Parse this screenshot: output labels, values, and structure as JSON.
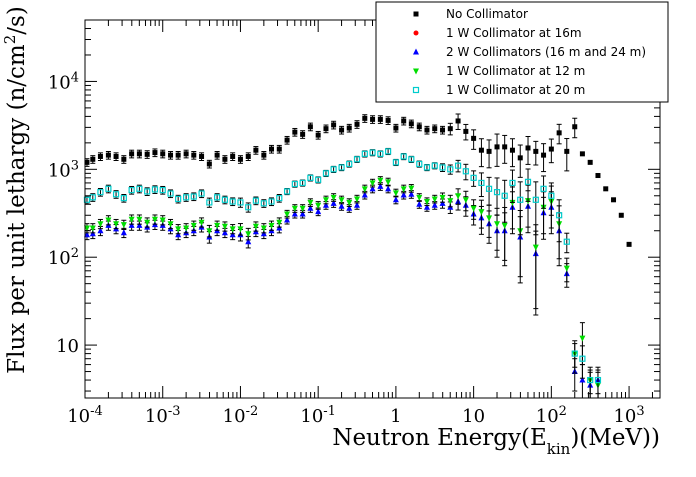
{
  "chart_data": {
    "type": "scatter",
    "xlabel_main": "Neutron Energy(E",
    "xlabel_sub": "kin",
    "xlabel_tail": ")(MeV))",
    "ylabel_main": "Flux per unit lethargy (n/cm",
    "ylabel_sup": "2",
    "ylabel_tail": "/s)",
    "x_scale": "log",
    "y_scale": "log",
    "xlim": [
      0.0001,
      2500
    ],
    "ylim": [
      2.5,
      50000
    ],
    "x_ticks": [
      {
        "value": 0.0001,
        "base": "10",
        "exp": "-4"
      },
      {
        "value": 0.001,
        "base": "10",
        "exp": "-3"
      },
      {
        "value": 0.01,
        "base": "10",
        "exp": "-2"
      },
      {
        "value": 0.1,
        "base": "10",
        "exp": "-1"
      },
      {
        "value": 1,
        "base": "1",
        "exp": ""
      },
      {
        "value": 10,
        "base": "10",
        "exp": ""
      },
      {
        "value": 100,
        "base": "10",
        "exp": "2"
      },
      {
        "value": 1000,
        "base": "10",
        "exp": "3"
      }
    ],
    "y_ticks": [
      {
        "value": 10,
        "base": "10",
        "exp": ""
      },
      {
        "value": 100,
        "base": "10",
        "exp": "2"
      },
      {
        "value": 1000,
        "base": "10",
        "exp": "3"
      },
      {
        "value": 10000,
        "base": "10",
        "exp": "4"
      }
    ],
    "grid": false,
    "legend_position": "top-right",
    "x": [
      0.000106,
      0.000126,
      0.000158,
      0.0002,
      0.000251,
      0.000316,
      0.000398,
      0.000501,
      0.000631,
      0.000794,
      0.001,
      0.00126,
      0.00158,
      0.002,
      0.00251,
      0.00316,
      0.00398,
      0.00501,
      0.00631,
      0.00794,
      0.01,
      0.0126,
      0.0158,
      0.02,
      0.0251,
      0.0316,
      0.0398,
      0.0501,
      0.0631,
      0.0794,
      0.1,
      0.126,
      0.158,
      0.2,
      0.251,
      0.316,
      0.398,
      0.501,
      0.631,
      0.794,
      1.0,
      1.26,
      1.58,
      2.0,
      2.51,
      3.16,
      3.98,
      5.01,
      6.31,
      7.94,
      10.0,
      12.6,
      15.8,
      20.0,
      25.1,
      31.6,
      39.8,
      50.1,
      63.1,
      79.4,
      100,
      126,
      158,
      200,
      251,
      316,
      398,
      501,
      631,
      794,
      1000
    ],
    "series": [
      {
        "name": "No Collimator",
        "color": "#000000",
        "marker": "square-filled",
        "values": [
          1200,
          1300,
          1400,
          1450,
          1400,
          1300,
          1500,
          1500,
          1480,
          1550,
          1500,
          1450,
          1450,
          1500,
          1450,
          1400,
          1150,
          1450,
          1300,
          1400,
          1300,
          1400,
          1650,
          1450,
          1700,
          1700,
          2150,
          2650,
          2500,
          3050,
          2450,
          2900,
          3200,
          2800,
          2950,
          3250,
          3800,
          3700,
          3700,
          3600,
          2950,
          3550,
          3300,
          3050,
          2800,
          2900,
          2800,
          2900,
          3550,
          2700,
          2250,
          1650,
          1600,
          1800,
          1800,
          1650,
          1350,
          1750,
          1600,
          1450,
          1700,
          2600,
          1600,
          3050,
          1500,
          1200,
          850,
          600,
          450,
          300,
          140
        ],
        "errors": [
          0.1,
          0.1,
          0.1,
          0.1,
          0.1,
          0.1,
          0.1,
          0.1,
          0.1,
          0.1,
          0.1,
          0.1,
          0.1,
          0.1,
          0.1,
          0.1,
          0.1,
          0.1,
          0.1,
          0.1,
          0.1,
          0.1,
          0.1,
          0.1,
          0.1,
          0.1,
          0.1,
          0.1,
          0.1,
          0.1,
          0.1,
          0.1,
          0.1,
          0.1,
          0.1,
          0.1,
          0.1,
          0.1,
          0.1,
          0.1,
          0.1,
          0.1,
          0.1,
          0.1,
          0.1,
          0.1,
          0.1,
          0.15,
          0.2,
          0.2,
          0.25,
          0.35,
          0.35,
          0.4,
          0.35,
          0.35,
          0.4,
          0.35,
          0.3,
          0.35,
          0.3,
          0.25,
          0.4,
          0.25,
          0.0,
          0.0,
          0.0,
          0.0,
          0.0,
          0.0,
          0.0
        ]
      },
      {
        "name": "1 W Collimator at 16m",
        "color": "#ff0000",
        "marker": "circle-filled",
        "values": [
          null,
          null,
          null,
          null,
          null,
          null,
          null,
          null,
          null,
          null,
          null,
          null,
          null,
          null,
          null,
          null,
          null,
          null,
          null,
          null,
          null,
          null,
          null,
          null,
          null,
          null,
          null,
          null,
          null,
          null,
          null,
          null,
          null,
          null,
          null,
          null,
          null,
          null,
          null,
          null,
          null,
          null,
          null,
          null,
          null,
          null,
          null,
          null,
          null,
          null,
          null,
          null,
          null,
          null,
          null,
          null,
          null,
          null,
          null,
          null,
          null,
          null,
          null,
          null,
          null,
          null,
          null,
          null,
          null,
          null,
          null
        ],
        "errors": []
      },
      {
        "name": "2 W Collimators (16 m and 24 m)",
        "color": "#0000ff",
        "marker": "triangle-up",
        "values": [
          180,
          185,
          200,
          230,
          210,
          190,
          230,
          230,
          220,
          235,
          230,
          210,
          180,
          190,
          200,
          220,
          170,
          200,
          190,
          180,
          180,
          150,
          195,
          185,
          200,
          215,
          265,
          310,
          310,
          360,
          330,
          390,
          410,
          380,
          360,
          390,
          510,
          600,
          640,
          600,
          450,
          510,
          520,
          400,
          370,
          390,
          410,
          370,
          430,
          390,
          310,
          280,
          240,
          200,
          200,
          370,
          170,
          380,
          110,
          320,
          370,
          200,
          65,
          5,
          4,
          3.5,
          4,
          null,
          null,
          null,
          null
        ],
        "errors": [
          0.12,
          0.12,
          0.12,
          0.12,
          0.12,
          0.12,
          0.12,
          0.12,
          0.12,
          0.12,
          0.12,
          0.12,
          0.12,
          0.12,
          0.12,
          0.12,
          0.15,
          0.12,
          0.12,
          0.12,
          0.15,
          0.15,
          0.12,
          0.12,
          0.12,
          0.12,
          0.1,
          0.1,
          0.1,
          0.1,
          0.1,
          0.1,
          0.1,
          0.1,
          0.1,
          0.1,
          0.1,
          0.1,
          0.1,
          0.1,
          0.1,
          0.1,
          0.1,
          0.1,
          0.1,
          0.1,
          0.12,
          0.15,
          0.2,
          0.25,
          0.25,
          0.35,
          0.4,
          0.5,
          0.6,
          0.5,
          0.7,
          0.5,
          0.8,
          0.5,
          0.5,
          0.6,
          0.3,
          0.4,
          0.5,
          0.4,
          0.4,
          0,
          0,
          0,
          0
        ]
      },
      {
        "name": "1 W Collimator at 12 m",
        "color": "#00dd00",
        "marker": "triangle-down",
        "values": [
          215,
          215,
          240,
          265,
          240,
          235,
          270,
          270,
          250,
          270,
          265,
          240,
          210,
          215,
          230,
          250,
          200,
          230,
          225,
          210,
          210,
          185,
          225,
          215,
          230,
          250,
          310,
          360,
          360,
          420,
          390,
          450,
          480,
          450,
          420,
          460,
          600,
          700,
          750,
          720,
          540,
          600,
          610,
          480,
          430,
          460,
          480,
          440,
          500,
          450,
          360,
          330,
          280,
          240,
          230,
          420,
          200,
          440,
          130,
          370,
          430,
          240,
          75,
          8,
          12,
          4,
          3.5,
          null,
          null,
          null,
          null
        ],
        "errors": [
          0.12,
          0.12,
          0.12,
          0.12,
          0.12,
          0.12,
          0.12,
          0.12,
          0.12,
          0.12,
          0.12,
          0.12,
          0.12,
          0.12,
          0.12,
          0.12,
          0.15,
          0.12,
          0.12,
          0.12,
          0.15,
          0.15,
          0.12,
          0.12,
          0.12,
          0.12,
          0.1,
          0.1,
          0.1,
          0.1,
          0.1,
          0.1,
          0.1,
          0.1,
          0.1,
          0.1,
          0.1,
          0.1,
          0.1,
          0.1,
          0.1,
          0.1,
          0.1,
          0.1,
          0.1,
          0.1,
          0.12,
          0.15,
          0.2,
          0.25,
          0.25,
          0.35,
          0.4,
          0.5,
          0.6,
          0.5,
          0.7,
          0.5,
          0.8,
          0.5,
          0.5,
          0.6,
          0.3,
          0.4,
          0.5,
          0.4,
          0.4,
          0,
          0,
          0,
          0
        ]
      },
      {
        "name": "1 W Collimator at 20 m",
        "color": "#00cccc",
        "marker": "square-open",
        "values": [
          450,
          480,
          550,
          600,
          520,
          470,
          580,
          600,
          560,
          590,
          580,
          530,
          460,
          480,
          490,
          530,
          420,
          480,
          450,
          430,
          420,
          370,
          440,
          410,
          430,
          470,
          560,
          680,
          700,
          800,
          760,
          900,
          1000,
          1050,
          1150,
          1300,
          1500,
          1550,
          1500,
          1600,
          1200,
          1400,
          1300,
          1150,
          1050,
          1100,
          1050,
          1000,
          1100,
          950,
          800,
          700,
          600,
          550,
          500,
          700,
          450,
          720,
          450,
          600,
          500,
          300,
          150,
          8,
          7,
          4,
          4,
          null,
          null,
          null,
          null
        ],
        "errors": [
          0.1,
          0.1,
          0.1,
          0.1,
          0.1,
          0.1,
          0.1,
          0.1,
          0.1,
          0.1,
          0.1,
          0.1,
          0.1,
          0.1,
          0.1,
          0.1,
          0.12,
          0.1,
          0.1,
          0.1,
          0.12,
          0.12,
          0.1,
          0.1,
          0.1,
          0.1,
          0.08,
          0.08,
          0.08,
          0.08,
          0.08,
          0.08,
          0.08,
          0.08,
          0.08,
          0.08,
          0.08,
          0.08,
          0.08,
          0.08,
          0.08,
          0.08,
          0.08,
          0.08,
          0.08,
          0.08,
          0.1,
          0.12,
          0.15,
          0.2,
          0.2,
          0.3,
          0.35,
          0.45,
          0.5,
          0.4,
          0.6,
          0.4,
          0.6,
          0.4,
          0.4,
          0.5,
          0.25,
          0.3,
          0.4,
          0.3,
          0.3,
          0,
          0,
          0,
          0
        ]
      }
    ]
  }
}
